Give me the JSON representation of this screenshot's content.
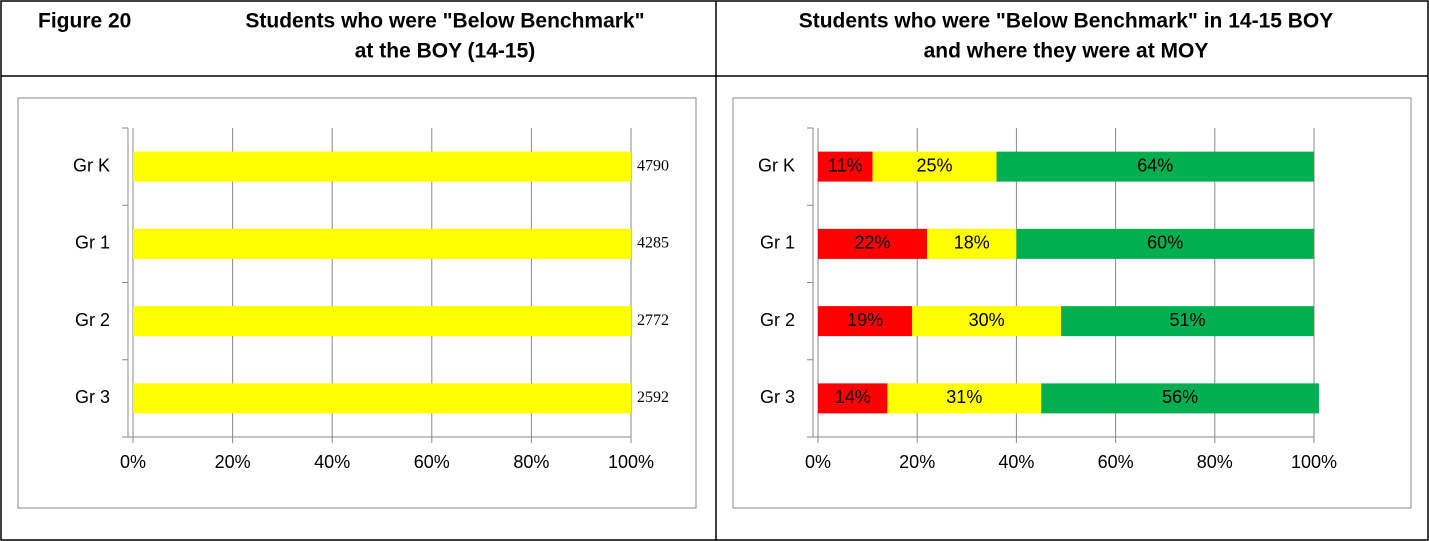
{
  "figure": "Figure 20",
  "chart_data": [
    {
      "type": "percent_bar",
      "title": [
        "Students who were \"Below Benchmark\"",
        "at the BOY (14-15)"
      ],
      "categories": [
        "Gr K",
        "Gr 1",
        "Gr 2",
        "Gr 3"
      ],
      "series": [
        {
          "color": "#ffff00",
          "values": [
            4790,
            4285,
            2772,
            2592
          ]
        }
      ],
      "xlim": [
        0,
        100
      ],
      "xticks": [
        {
          "value": 0,
          "label": "0%"
        },
        {
          "value": 20,
          "label": "20%"
        },
        {
          "value": 40,
          "label": "40%"
        },
        {
          "value": 60,
          "label": "60%"
        },
        {
          "value": 80,
          "label": "80%"
        },
        {
          "value": 100,
          "label": "100%"
        }
      ],
      "grid": true
    },
    {
      "type": "stacked_bar",
      "title": [
        "Students who were \"Below Benchmark\" in 14-15 BOY",
        "and where they were at MOY"
      ],
      "categories": [
        "Gr K",
        "Gr 1",
        "Gr 2",
        "Gr 3"
      ],
      "series": [
        {
          "color": "#ff0000",
          "values": [
            11,
            22,
            19,
            14
          ],
          "value_labels": [
            "11%",
            "22%",
            "19%",
            "14%"
          ]
        },
        {
          "color": "#ffff00",
          "values": [
            25,
            18,
            30,
            31
          ],
          "value_labels": [
            "25%",
            "18%",
            "30%",
            "31%"
          ]
        },
        {
          "color": "#00b050",
          "values": [
            64,
            60,
            51,
            56
          ],
          "value_labels": [
            "64%",
            "60%",
            "51%",
            "56%"
          ]
        }
      ],
      "xlim": [
        0,
        100
      ],
      "xticks": [
        {
          "value": 0,
          "label": "0%"
        },
        {
          "value": 20,
          "label": "20%"
        },
        {
          "value": 40,
          "label": "40%"
        },
        {
          "value": 60,
          "label": "60%"
        },
        {
          "value": 80,
          "label": "80%"
        },
        {
          "value": 100,
          "label": "100%"
        }
      ],
      "grid": true
    }
  ]
}
